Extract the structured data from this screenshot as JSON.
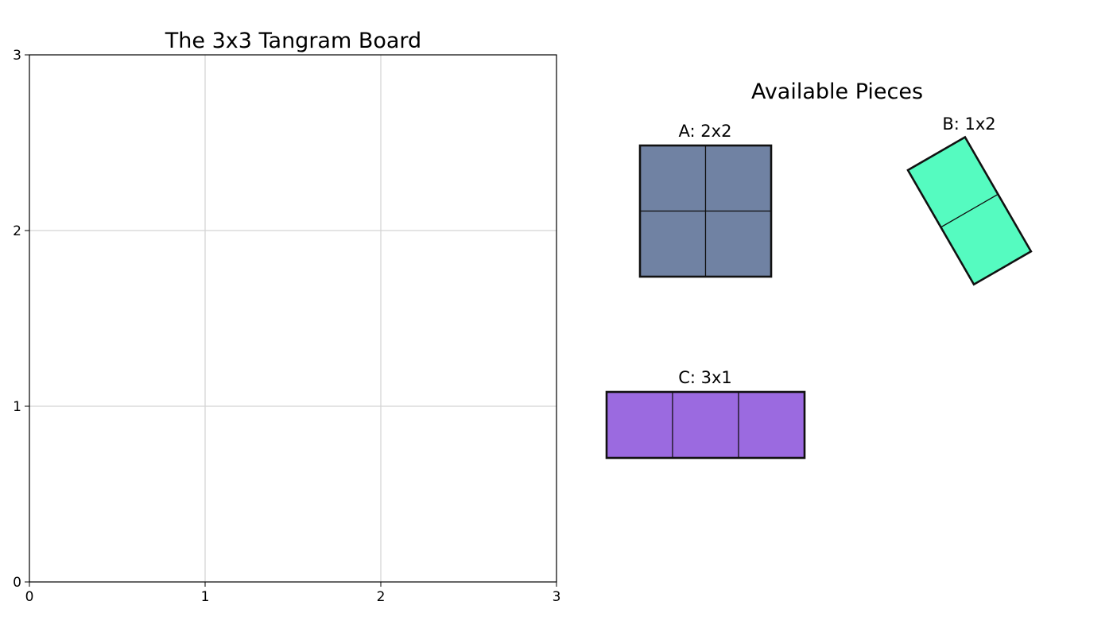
{
  "board": {
    "title": "The 3x3 Tangram Board",
    "size": 3,
    "grid": true,
    "x_ticks": [
      "0",
      "1",
      "2",
      "3"
    ],
    "y_ticks": [
      "0",
      "1",
      "2",
      "3"
    ]
  },
  "pieces_panel": {
    "title": "Available Pieces",
    "pieces": [
      {
        "id": "A",
        "label": "A: 2x2",
        "cols": 2,
        "rows": 2,
        "color": "#7082a3",
        "rotation_deg": 0
      },
      {
        "id": "B",
        "label": "B: 1x2",
        "cols": 1,
        "rows": 2,
        "color": "#55fbc0",
        "rotation_deg": -30
      },
      {
        "id": "C",
        "label": "C: 3x1",
        "cols": 3,
        "rows": 1,
        "color": "#9b6ae0",
        "rotation_deg": 0
      }
    ]
  }
}
